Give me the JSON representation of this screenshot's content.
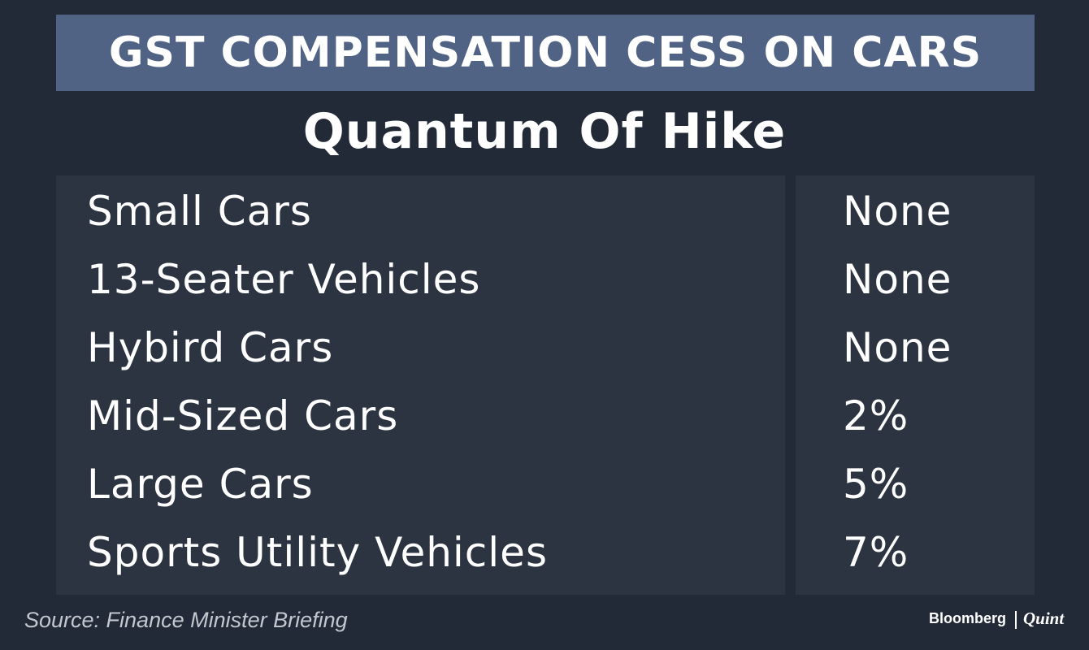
{
  "header": {
    "title": "GST COMPENSATION CESS ON CARS",
    "subtitle": "Quantum Of Hike"
  },
  "table": {
    "rows": [
      [
        "Small Cars",
        "None"
      ],
      [
        "13-Seater Vehicles",
        "None"
      ],
      [
        "Hybird Cars",
        "None"
      ],
      [
        "Mid-Sized Cars",
        "2%"
      ],
      [
        "Large Cars",
        "5%"
      ],
      [
        "Sports Utility Vehicles",
        "7%"
      ]
    ]
  },
  "footer": {
    "source": "Source: Finance Minister Briefing",
    "brand": [
      "Bloomberg",
      "Quint"
    ]
  }
}
